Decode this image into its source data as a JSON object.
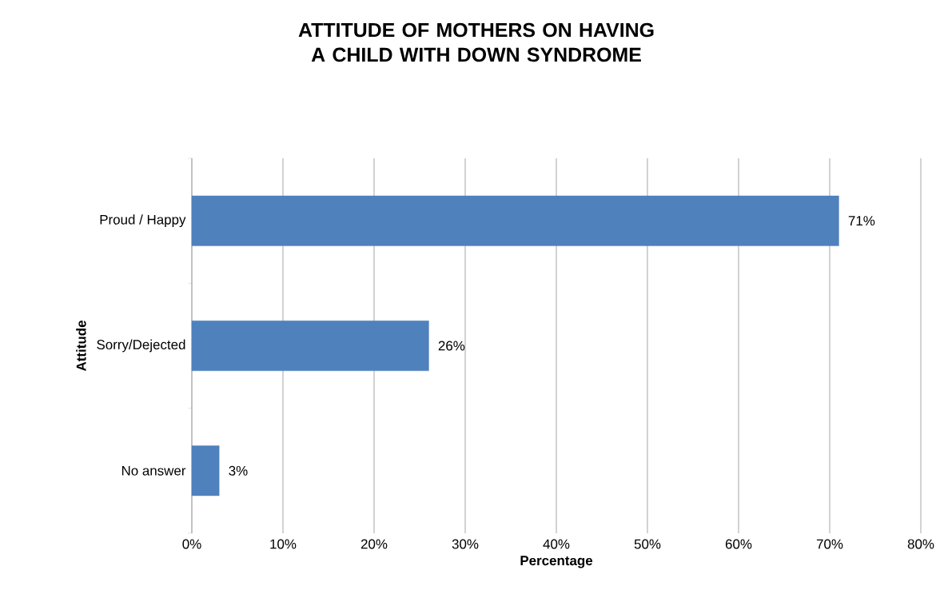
{
  "chart_data": {
    "type": "bar",
    "orientation": "horizontal",
    "title": "ATTITUDE OF MOTHERS ON HAVING A CHILD WITH DOWN SYNDROME",
    "xlabel": "Percentage",
    "ylabel": "Attitude",
    "categories": [
      "Proud / Happy",
      "Sorry/Dejected",
      "No answer"
    ],
    "values": [
      71,
      26,
      3
    ],
    "value_labels": [
      "71%",
      "26%",
      "3%"
    ],
    "color": "#4f81bd",
    "xlim": [
      0,
      80
    ],
    "xticks": [
      {
        "value": 0,
        "label": "0%"
      },
      {
        "value": 10,
        "label": "10%"
      },
      {
        "value": 20,
        "label": "20%"
      },
      {
        "value": 30,
        "label": "30%"
      },
      {
        "value": 40,
        "label": "40%"
      },
      {
        "value": 50,
        "label": "50%"
      },
      {
        "value": 60,
        "label": "60%"
      },
      {
        "value": 70,
        "label": "70%"
      },
      {
        "value": 80,
        "label": "80%"
      }
    ],
    "grid": "x"
  }
}
